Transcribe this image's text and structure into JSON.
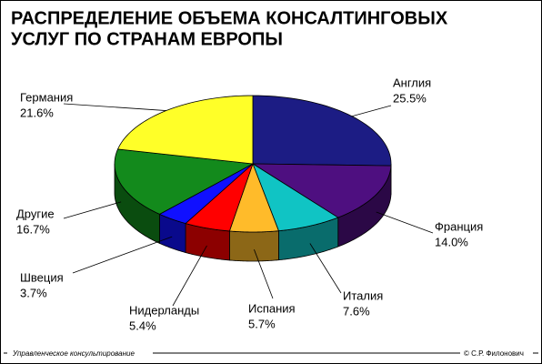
{
  "chart_data": {
    "type": "pie",
    "title": [
      "РАСПРЕДЕЛЕНИЕ ОБЪЕМА КОНСАЛТИНГОВЫХ",
      "УСЛУГ ПО СТРАНАМ ЕВРОПЫ"
    ],
    "categories": [
      "Англия",
      "Франция",
      "Италия",
      "Испания",
      "Нидерланды",
      "Швеция",
      "Другие",
      "Германия"
    ],
    "values": [
      25.5,
      14.0,
      7.6,
      5.7,
      5.4,
      3.7,
      16.7,
      21.6
    ],
    "value_labels": [
      "25.5%",
      "14.0%",
      "7.6%",
      "5.7%",
      "5.4%",
      "3.7%",
      "16.7%",
      "21.6%"
    ],
    "colors": [
      "#1c1c84",
      "#4e0f80",
      "#10c4c4",
      "#ffbb2a",
      "#ff0000",
      "#1010ff",
      "#138a1c",
      "#ffff28"
    ],
    "footer_left": "Управленческое консультирование",
    "footer_right": "© С.Р. Филонович"
  }
}
